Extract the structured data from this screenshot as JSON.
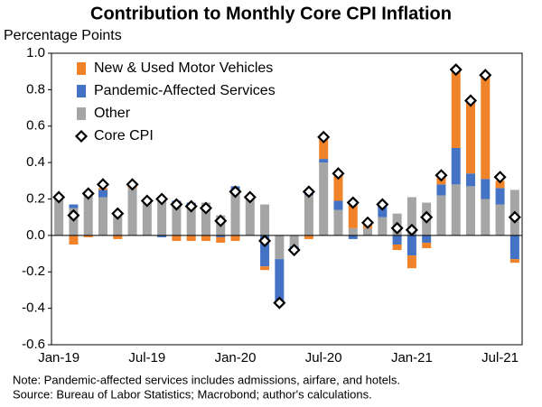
{
  "chart_data": {
    "type": "stacked_bar",
    "title": "Contribution to Monthly Core CPI Inflation",
    "y_axis_label": "Percentage Points",
    "categories": [
      "Jan-19",
      null,
      null,
      null,
      null,
      null,
      "Jul-19",
      null,
      null,
      null,
      null,
      null,
      "Jan-20",
      null,
      null,
      null,
      null,
      null,
      "Jul-20",
      null,
      null,
      null,
      null,
      null,
      "Jan-21",
      null,
      null,
      null,
      null,
      null,
      "Jul-21",
      null
    ],
    "series": [
      {
        "name": "New & Used Motor Vehicles",
        "color": "#f0832a",
        "kind": "bar",
        "values": [
          0.0,
          -0.05,
          -0.01,
          0.01,
          -0.02,
          0.02,
          0.0,
          0.0,
          -0.03,
          -0.03,
          -0.03,
          -0.03,
          -0.03,
          0.0,
          -0.02,
          0.0,
          0.0,
          -0.02,
          0.11,
          0.16,
          0.14,
          0.04,
          0.0,
          -0.03,
          -0.07,
          -0.03,
          0.04,
          0.43,
          0.4,
          0.57,
          0.04,
          -0.02
        ]
      },
      {
        "name": "Pandemic-Affected Services",
        "color": "#4472c4",
        "kind": "bar",
        "values": [
          0.01,
          0.02,
          0.0,
          0.04,
          0.0,
          0.0,
          0.01,
          -0.01,
          0.01,
          0.01,
          0.0,
          -0.01,
          0.02,
          0.0,
          -0.17,
          -0.24,
          -0.02,
          0.01,
          0.02,
          0.05,
          -0.02,
          0.0,
          0.06,
          -0.05,
          -0.11,
          -0.04,
          0.06,
          0.2,
          0.07,
          0.11,
          0.09,
          -0.13
        ]
      },
      {
        "name": "Other",
        "color": "#a5a5a5",
        "kind": "bar",
        "values": [
          0.2,
          0.15,
          0.22,
          0.21,
          0.12,
          0.26,
          0.18,
          0.2,
          0.18,
          0.17,
          0.18,
          0.11,
          0.25,
          0.22,
          0.17,
          -0.13,
          -0.06,
          0.22,
          0.4,
          0.14,
          0.04,
          0.04,
          0.1,
          0.12,
          0.21,
          0.18,
          0.22,
          0.28,
          0.27,
          0.2,
          0.17,
          0.25
        ]
      },
      {
        "name": "Core CPI",
        "color": "#000000",
        "kind": "marker",
        "values": [
          0.21,
          0.11,
          0.23,
          0.28,
          0.12,
          0.28,
          0.19,
          0.2,
          0.17,
          0.16,
          0.15,
          0.08,
          0.24,
          0.21,
          -0.03,
          -0.37,
          -0.08,
          0.24,
          0.54,
          0.34,
          0.18,
          0.07,
          0.17,
          0.04,
          0.03,
          0.1,
          0.33,
          0.91,
          0.74,
          0.88,
          0.32,
          0.1
        ]
      }
    ],
    "ylim": [
      -0.6,
      1.0
    ],
    "yticks": [
      {
        "value": -0.6,
        "label": "-0.6"
      },
      {
        "value": -0.4,
        "label": "-0.4"
      },
      {
        "value": -0.2,
        "label": "-0.2"
      },
      {
        "value": 0,
        "label": "0.0"
      },
      {
        "value": 0.2,
        "label": "0.2"
      },
      {
        "value": 0.4,
        "label": "0.4"
      },
      {
        "value": 0.6,
        "label": "0.6"
      },
      {
        "value": 0.8,
        "label": "0.8"
      },
      {
        "value": 1.0,
        "label": "1.0"
      }
    ],
    "legend": "top-left",
    "notes": [
      "Note:  Pandemic-affected services includes admissions, airfare, and hotels.",
      "Source: Bureau of Labor Statistics; Macrobond; author's calculations."
    ]
  }
}
